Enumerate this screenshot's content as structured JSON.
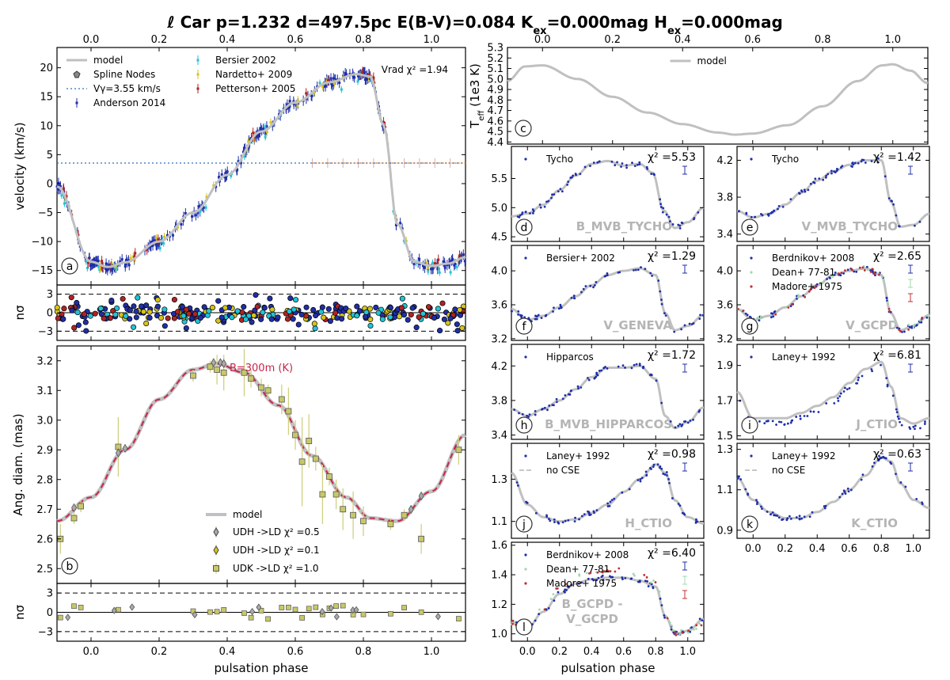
{
  "figure": {
    "title": "ℓ Car p=1.232 d=497.5pc E(B-V)=0.084 K$_{ex}$=0.000mag H$_{ex}$=0.000mag",
    "title_parts": [
      "ℓ Car p=1.232 d=497.5pc E(B-V)=0.084 K",
      "ex",
      "=0.000mag H",
      "ex",
      "=0.000mag"
    ],
    "xlabel_left": "pulsation phase",
    "xlabel_right": "pulsation phase",
    "colors": {
      "model": "#c0c0c0",
      "blue": "#1f2fa8",
      "cyan": "#22c3d6",
      "yellow": "#d4c41a",
      "red": "#b22222",
      "olive": "#c8c86a",
      "crimson": "#c8244a"
    }
  },
  "chart_data": [
    {
      "id": "a",
      "type": "scatter",
      "panel_letter": "a",
      "ylabel": "velocity (km/s)",
      "xlim": [
        -0.1,
        1.1
      ],
      "ylim": [
        -17.5,
        23.5
      ],
      "xticks": [
        "0.0",
        "0.2",
        "0.4",
        "0.6",
        "0.8",
        "1.0"
      ],
      "xtick_values": [
        0,
        0.2,
        0.4,
        0.6,
        0.8,
        1.0
      ],
      "yticks": [
        "−15",
        "−10",
        "−5",
        "0",
        "5",
        "10",
        "15",
        "20"
      ],
      "ytick_values": [
        -15,
        -10,
        -5,
        0,
        5,
        10,
        15,
        20
      ],
      "annotation": "Vrad χ² =1.94",
      "v_gamma": 3.55,
      "model_phases": [
        -0.1,
        0,
        0.05,
        0.1,
        0.2,
        0.3,
        0.4,
        0.5,
        0.6,
        0.7,
        0.78,
        0.82,
        0.86,
        0.9,
        0.95,
        1.0,
        1.05,
        1.1
      ],
      "model_values": [
        -0.5,
        -13.5,
        -14.4,
        -13.6,
        -10,
        -5,
        1.5,
        9,
        14,
        17.5,
        18.9,
        18.5,
        10,
        -7,
        -13.5,
        -14.2,
        -13.8,
        -12.7
      ],
      "legend": [
        "model",
        "Spline Nodes",
        "Vγ=3.55 km/s",
        "Anderson 2014",
        "Bersier 2002",
        "Nardetto+ 2009",
        "Petterson+ 2005"
      ]
    },
    {
      "id": "a_res",
      "type": "scatter",
      "ylabel": "nσ",
      "ylim": [
        -4.5,
        4.5
      ],
      "yticks": [
        "3",
        "0",
        "−3"
      ],
      "ytick_values": [
        3,
        0,
        -3
      ]
    },
    {
      "id": "b",
      "type": "line",
      "panel_letter": "b",
      "ylabel": "Ang. diam. (mas)",
      "xlim": [
        -0.1,
        1.1
      ],
      "ylim": [
        2.45,
        3.25
      ],
      "yticks": [
        "2.5",
        "2.6",
        "2.7",
        "2.8",
        "2.9",
        "3.0",
        "3.1",
        "3.2"
      ],
      "ytick_values": [
        2.5,
        2.6,
        2.7,
        2.8,
        2.9,
        3.0,
        3.1,
        3.2
      ],
      "annotation": "B=300m (K)",
      "model_phases": [
        -0.1,
        0,
        0.1,
        0.2,
        0.3,
        0.37,
        0.45,
        0.55,
        0.65,
        0.75,
        0.82,
        0.9,
        1.0,
        1.1
      ],
      "model_values": [
        2.66,
        2.74,
        2.9,
        3.07,
        3.17,
        3.19,
        3.16,
        3.05,
        2.88,
        2.74,
        2.67,
        2.66,
        2.76,
        2.95
      ],
      "uk_points": {
        "phases": [
          -0.09,
          -0.05,
          -0.03,
          0.08,
          0.3,
          0.35,
          0.37,
          0.39,
          0.45,
          0.47,
          0.5,
          0.52,
          0.56,
          0.58,
          0.6,
          0.62,
          0.64,
          0.66,
          0.68,
          0.7,
          0.72,
          0.74,
          0.77,
          0.8,
          0.88,
          0.92,
          0.97,
          1.08
        ],
        "values": [
          2.6,
          2.67,
          2.71,
          2.91,
          3.15,
          3.18,
          3.17,
          3.16,
          3.16,
          3.14,
          3.11,
          3.1,
          3.07,
          3.03,
          2.95,
          2.86,
          2.93,
          2.87,
          2.75,
          2.81,
          2.75,
          2.7,
          2.68,
          2.66,
          2.65,
          2.68,
          2.6,
          2.9
        ],
        "errors": [
          0.05,
          0.02,
          0.02,
          0.1,
          0.02,
          0.02,
          0.05,
          0.06,
          0.08,
          0.03,
          0.03,
          0.02,
          0.05,
          0.08,
          0.05,
          0.15,
          0.09,
          0.04,
          0.1,
          0.03,
          0.05,
          0.07,
          0.08,
          0.05,
          0.02,
          0.02,
          0.05,
          0.05
        ]
      },
      "legend": [
        "model",
        "UD$_H$ ->LD χ² =0.5",
        "UD$_H$ ->LD χ² =0.1",
        "UD$_K$ ->LD χ² =1.0"
      ],
      "legend_rendered": [
        "model",
        "UDH ->LD χ² =0.5",
        "UDH ->LD χ² =0.1",
        "UDK ->LD χ² =1.0"
      ]
    },
    {
      "id": "b_res",
      "type": "scatter",
      "ylabel": "nσ",
      "ylim": [
        -4.5,
        4.5
      ],
      "yticks": [
        "3",
        "0",
        "−3"
      ],
      "ytick_values": [
        3,
        0,
        -3
      ]
    },
    {
      "id": "c",
      "type": "line",
      "panel_letter": "c",
      "ylabel": "T_eff (1e3 K)",
      "xlim": [
        -0.1,
        1.1
      ],
      "ylim": [
        4.38,
        5.3
      ],
      "yticks": [
        "4.4",
        "4.5",
        "4.6",
        "4.7",
        "4.8",
        "4.9",
        "5.0",
        "5.1",
        "5.2",
        "5.3"
      ],
      "ytick_values": [
        4.4,
        4.5,
        4.6,
        4.7,
        4.8,
        4.9,
        5.0,
        5.1,
        5.2,
        5.3
      ],
      "xticks": [
        "0.0",
        "0.2",
        "0.4",
        "0.6",
        "0.8",
        "1.0"
      ],
      "xtick_values": [
        0,
        0.2,
        0.4,
        0.6,
        0.8,
        1.0
      ],
      "model_phases": [
        -0.1,
        -0.05,
        0,
        0.1,
        0.2,
        0.3,
        0.4,
        0.5,
        0.55,
        0.6,
        0.7,
        0.8,
        0.9,
        0.97,
        1.0,
        1.05,
        1.1
      ],
      "model_values": [
        4.98,
        5.12,
        5.13,
        5.0,
        4.83,
        4.68,
        4.57,
        4.49,
        4.47,
        4.48,
        4.56,
        4.74,
        4.98,
        5.13,
        5.14,
        5.08,
        4.96
      ],
      "legend": [
        "model"
      ]
    },
    {
      "id": "d",
      "panel_letter": "d",
      "type": "scatter",
      "watermark": "B_MVB_TYCHO",
      "chi2": "χ² =5.53",
      "legend": [
        "Tycho"
      ],
      "ylim": [
        4.42,
        6.05
      ],
      "yticks": [
        "4.5",
        "5.0",
        "5.5"
      ],
      "ytick_values": [
        4.5,
        5.0,
        5.5
      ],
      "model_phases": [
        -0.1,
        0,
        0.1,
        0.2,
        0.3,
        0.4,
        0.5,
        0.6,
        0.7,
        0.78,
        0.85,
        0.92,
        1.0,
        1.1
      ],
      "model_values": [
        4.85,
        4.9,
        5.05,
        5.3,
        5.55,
        5.75,
        5.8,
        5.72,
        5.75,
        5.6,
        4.95,
        4.65,
        4.75,
        5.0
      ]
    },
    {
      "id": "e",
      "panel_letter": "e",
      "type": "scatter",
      "watermark": "V_MVB_TYCHO",
      "chi2": "χ² =1.42",
      "legend": [
        "Tycho"
      ],
      "ylim": [
        3.32,
        4.35
      ],
      "yticks": [
        "3.4",
        "3.8",
        "4.2"
      ],
      "ytick_values": [
        3.4,
        3.8,
        4.2
      ],
      "model_phases": [
        -0.1,
        0,
        0.1,
        0.2,
        0.3,
        0.4,
        0.5,
        0.6,
        0.7,
        0.8,
        0.86,
        0.92,
        1.0,
        1.1
      ],
      "model_values": [
        3.65,
        3.58,
        3.62,
        3.72,
        3.85,
        3.98,
        4.08,
        4.15,
        4.2,
        4.2,
        3.75,
        3.48,
        3.5,
        3.62
      ]
    },
    {
      "id": "f",
      "panel_letter": "f",
      "type": "scatter",
      "watermark": "V_GENEVA",
      "chi2": "χ² =1.29",
      "legend": [
        "Bersier+ 2002"
      ],
      "ylim": [
        3.18,
        4.3
      ],
      "yticks": [
        "3.2",
        "3.6",
        "4.0"
      ],
      "ytick_values": [
        3.2,
        3.6,
        4.0
      ],
      "model_phases": [
        -0.1,
        0,
        0.1,
        0.2,
        0.3,
        0.4,
        0.5,
        0.6,
        0.7,
        0.8,
        0.86,
        0.92,
        1.0,
        1.1
      ],
      "model_values": [
        3.55,
        3.42,
        3.47,
        3.57,
        3.7,
        3.83,
        3.95,
        4.0,
        4.03,
        3.95,
        3.5,
        3.3,
        3.35,
        3.48
      ]
    },
    {
      "id": "g",
      "panel_letter": "g",
      "type": "scatter",
      "watermark": "V_GCPD",
      "chi2": "χ² =2.65",
      "legend": [
        "Berdnikov+ 2008",
        "Dean+ 77-81",
        "Madore+ 1975"
      ],
      "ylim": [
        3.18,
        4.3
      ],
      "yticks": [
        "3.2",
        "3.6",
        "4.0"
      ],
      "ytick_values": [
        3.2,
        3.6,
        4.0
      ],
      "model_phases": [
        -0.1,
        0,
        0.1,
        0.2,
        0.3,
        0.4,
        0.5,
        0.6,
        0.7,
        0.8,
        0.86,
        0.92,
        1.0,
        1.1
      ],
      "model_values": [
        3.55,
        3.42,
        3.47,
        3.57,
        3.7,
        3.83,
        3.95,
        4.0,
        4.03,
        3.95,
        3.5,
        3.3,
        3.35,
        3.48
      ]
    },
    {
      "id": "h",
      "panel_letter": "h",
      "type": "scatter",
      "watermark": "B_MVB_HIPPARCOS",
      "chi2": "χ² =1.72",
      "legend": [
        "Hipparcos"
      ],
      "ylim": [
        3.35,
        4.45
      ],
      "yticks": [
        "3.4",
        "3.8",
        "4.2"
      ],
      "ytick_values": [
        3.4,
        3.8,
        4.2
      ],
      "model_phases": [
        -0.1,
        0,
        0.1,
        0.2,
        0.3,
        0.4,
        0.5,
        0.6,
        0.7,
        0.8,
        0.86,
        0.92,
        1.0,
        1.1
      ],
      "model_values": [
        3.7,
        3.62,
        3.7,
        3.8,
        3.93,
        4.07,
        4.18,
        4.18,
        4.2,
        4.05,
        3.62,
        3.48,
        3.55,
        3.72
      ]
    },
    {
      "id": "i",
      "panel_letter": "i",
      "type": "scatter",
      "watermark": "J_CTIO",
      "chi2": "χ² =6.81",
      "legend": [
        "Laney+ 1992"
      ],
      "ylim": [
        1.48,
        2.02
      ],
      "yticks": [
        "1.5",
        "1.7",
        "1.9"
      ],
      "ytick_values": [
        1.5,
        1.7,
        1.9
      ],
      "model_phases": [
        -0.1,
        0,
        0.1,
        0.2,
        0.3,
        0.4,
        0.5,
        0.6,
        0.7,
        0.8,
        0.86,
        0.92,
        1.0,
        1.1
      ],
      "model_values": [
        1.75,
        1.6,
        1.6,
        1.6,
        1.63,
        1.67,
        1.72,
        1.8,
        1.88,
        1.92,
        1.78,
        1.6,
        1.57,
        1.6
      ]
    },
    {
      "id": "j",
      "panel_letter": "j",
      "type": "scatter",
      "watermark": "H_CTIO",
      "chi2": "χ² =0.98",
      "legend": [
        "Laney+ 1992",
        "no CSE"
      ],
      "ylim": [
        1.02,
        1.47
      ],
      "yticks": [
        "1.1",
        "1.3"
      ],
      "ytick_values": [
        1.1,
        1.3
      ],
      "model_phases": [
        -0.1,
        0,
        0.1,
        0.2,
        0.3,
        0.4,
        0.5,
        0.6,
        0.7,
        0.8,
        0.86,
        0.92,
        1.0,
        1.1
      ],
      "model_values": [
        1.33,
        1.18,
        1.12,
        1.1,
        1.11,
        1.14,
        1.18,
        1.24,
        1.3,
        1.37,
        1.33,
        1.2,
        1.12,
        1.09
      ]
    },
    {
      "id": "k",
      "panel_letter": "k",
      "type": "scatter",
      "watermark": "K_CTIO",
      "chi2": "χ² =0.63",
      "legend": [
        "Laney+ 1992",
        "no CSE"
      ],
      "ylim": [
        0.86,
        1.33
      ],
      "yticks": [
        "0.9",
        "1.1",
        "1.3"
      ],
      "ytick_values": [
        0.9,
        1.1,
        1.3
      ],
      "model_phases": [
        -0.1,
        0,
        0.1,
        0.2,
        0.3,
        0.4,
        0.5,
        0.6,
        0.7,
        0.8,
        0.86,
        0.92,
        1.0,
        1.1
      ],
      "model_values": [
        1.16,
        1.05,
        0.99,
        0.96,
        0.96,
        0.99,
        1.04,
        1.1,
        1.17,
        1.26,
        1.24,
        1.13,
        1.05,
        1.01
      ]
    },
    {
      "id": "l",
      "panel_letter": "l",
      "type": "scatter",
      "watermark": "B_GCPD -\nV_GCPD",
      "watermark_lines": [
        "B_GCPD -",
        "V_GCPD"
      ],
      "chi2": "χ² =6.40",
      "legend": [
        "Berdnikov+ 2008",
        "Dean+ 77-81",
        "Madore+ 1975"
      ],
      "ylim": [
        0.95,
        1.62
      ],
      "yticks": [
        "1.0",
        "1.2",
        "1.4",
        "1.6"
      ],
      "ytick_values": [
        1.0,
        1.2,
        1.4,
        1.6
      ],
      "xticks": [
        "0.0",
        "0.2",
        "0.4",
        "0.6",
        "0.8",
        "1.0"
      ],
      "xtick_values": [
        0,
        0.2,
        0.4,
        0.6,
        0.8,
        1.0
      ],
      "model_phases": [
        -0.1,
        0,
        0.1,
        0.2,
        0.3,
        0.4,
        0.5,
        0.6,
        0.7,
        0.8,
        0.86,
        0.92,
        1.0,
        1.1
      ],
      "model_values": [
        1.08,
        1.04,
        1.15,
        1.27,
        1.34,
        1.37,
        1.38,
        1.38,
        1.36,
        1.32,
        1.12,
        1.0,
        1.02,
        1.1
      ]
    }
  ]
}
